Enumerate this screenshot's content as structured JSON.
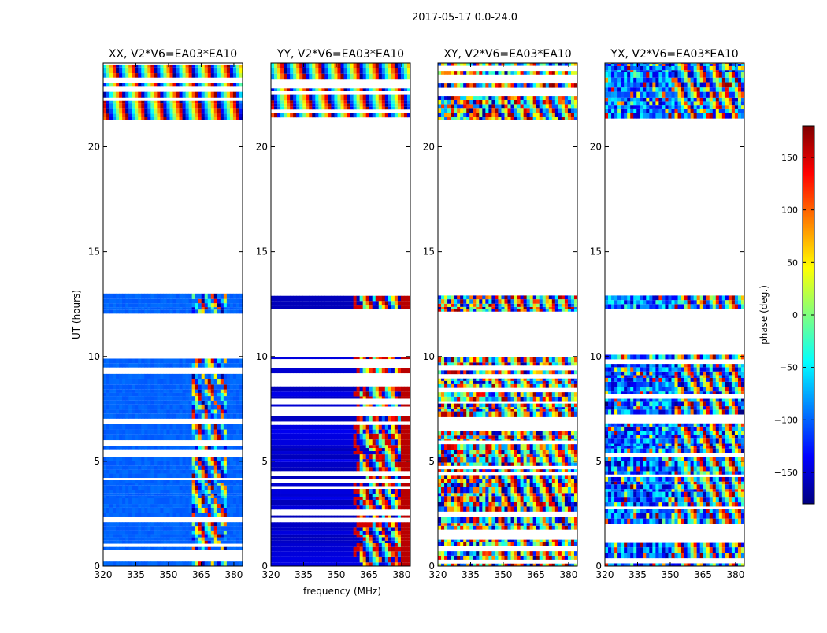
{
  "figure_title": "2017-05-17 0.0-24.0",
  "colorbar": {
    "label": "phase (deg.)",
    "range": [
      -180,
      180
    ],
    "ticks": [
      150,
      100,
      50,
      0,
      -50,
      -100,
      -150
    ],
    "tick_labels": [
      "150",
      "100",
      "50",
      "0",
      "−50",
      "−100",
      "−150"
    ],
    "colormap": [
      "#00007f",
      "#0000ff",
      "#007fff",
      "#00ffff",
      "#7fff7f",
      "#ffff00",
      "#ff7f00",
      "#ff0000",
      "#7f0000"
    ]
  },
  "chart_data": [
    {
      "type": "heatmap",
      "title": "XX, V2*V6=EA03*EA10",
      "xlabel": "",
      "ylabel": "UT (hours)",
      "xlim": [
        320,
        384
      ],
      "ylim": [
        0,
        24
      ],
      "xticks": [
        320,
        335,
        350,
        365,
        380
      ],
      "yticks": [
        0,
        5,
        10,
        15,
        20
      ],
      "z_label": "phase (deg.)",
      "z_range": [
        -180,
        180
      ],
      "data_gaps_hours": [
        [
          10.0,
          12.1
        ],
        [
          12.9,
          21.3
        ]
      ],
      "pattern": {
        "mode": "flat",
        "low_phase": -105,
        "high_phase": -95,
        "fringe_start_mhz": 361,
        "fringe_end_mhz": 376
      }
    },
    {
      "type": "heatmap",
      "title": "YY, V2*V6=EA03*EA10",
      "xlabel": "frequency (MHz)",
      "ylabel": "",
      "xlim": [
        320,
        384
      ],
      "ylim": [
        0,
        24
      ],
      "xticks": [
        320,
        335,
        350,
        365,
        380
      ],
      "yticks": [
        0,
        5,
        10,
        15,
        20
      ],
      "z_label": "phase (deg.)",
      "z_range": [
        -180,
        180
      ],
      "data_gaps_hours": [
        [
          10.0,
          12.1
        ],
        [
          12.9,
          21.3
        ]
      ],
      "pattern": {
        "mode": "gradient",
        "low_phase": -170,
        "high_phase": 170,
        "fringe_start_mhz": 361,
        "fringe_end_mhz": 379
      }
    },
    {
      "type": "heatmap",
      "title": "XY, V2*V6=EA03*EA10",
      "xlabel": "",
      "ylabel": "",
      "xlim": [
        320,
        384
      ],
      "ylim": [
        0,
        24
      ],
      "xticks": [
        320,
        335,
        350,
        365,
        380
      ],
      "yticks": [
        0,
        5,
        10,
        15,
        20
      ],
      "z_label": "phase (deg.)",
      "z_range": [
        -180,
        180
      ],
      "data_gaps_hours": [
        [
          10.0,
          12.1
        ],
        [
          12.9,
          21.3
        ]
      ],
      "pattern": {
        "mode": "noise",
        "low_phase": -180,
        "high_phase": 180,
        "fringe_start_mhz": 345,
        "fringe_end_mhz": 384
      }
    },
    {
      "type": "heatmap",
      "title": "YX, V2*V6=EA03*EA10",
      "xlabel": "",
      "ylabel": "",
      "xlim": [
        320,
        384
      ],
      "ylim": [
        0,
        24
      ],
      "xticks": [
        320,
        335,
        350,
        365,
        380
      ],
      "yticks": [
        0,
        5,
        10,
        15,
        20
      ],
      "z_label": "phase (deg.)",
      "z_range": [
        -180,
        180
      ],
      "data_gaps_hours": [
        [
          10.0,
          12.1
        ],
        [
          12.9,
          21.3
        ]
      ],
      "pattern": {
        "mode": "bluenoise",
        "low_phase": -160,
        "high_phase": -40,
        "fringe_start_mhz": 352,
        "fringe_end_mhz": 384
      }
    }
  ]
}
